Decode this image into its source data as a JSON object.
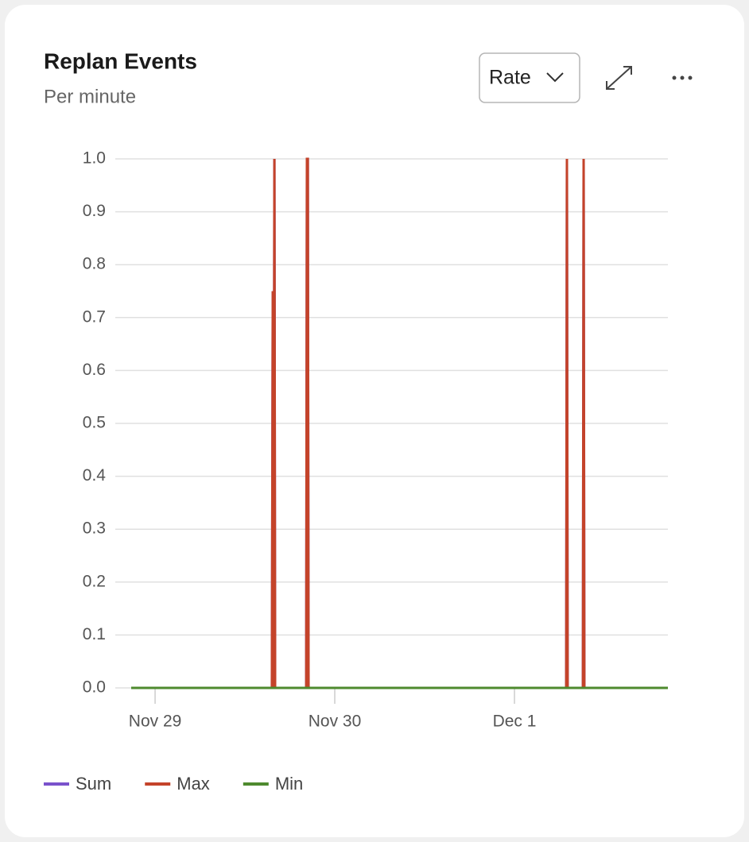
{
  "chart_data": {
    "type": "line",
    "title": "Replan Events",
    "subtitle": "Per minute",
    "x": [
      -0.133,
      0.65,
      0.655,
      0.659,
      0.664,
      0.668,
      0.841,
      0.845,
      0.85,
      0.854,
      2.288,
      2.292,
      2.296,
      2.381,
      2.385,
      2.389,
      2.854
    ],
    "series": [
      {
        "name": "Sum",
        "color": "#7a52cc",
        "values": [
          0,
          0,
          0.75,
          0,
          1,
          0,
          0,
          1,
          1,
          0,
          0,
          1,
          0,
          0,
          1,
          0,
          0
        ]
      },
      {
        "name": "Max",
        "color": "#c4432a",
        "values": [
          0,
          0,
          0.75,
          0,
          1,
          0,
          0,
          1,
          1,
          0,
          0,
          1,
          0,
          0,
          1,
          0,
          0
        ]
      },
      {
        "name": "Min",
        "color": "#4e8a2e",
        "values": [
          0,
          0,
          0,
          0,
          0,
          0,
          0,
          0,
          0,
          0,
          0,
          0,
          0,
          0,
          0,
          0,
          0
        ]
      }
    ],
    "xlim": [
      -0.133,
      2.854
    ],
    "xticks": [
      {
        "value": 0,
        "label": "Nov 29"
      },
      {
        "value": 1,
        "label": "Nov 30"
      },
      {
        "value": 2,
        "label": "Dec 1"
      }
    ],
    "ylim": [
      0,
      1
    ],
    "yticks": [
      {
        "value": 0,
        "label": "0.0"
      },
      {
        "value": 0.1,
        "label": "0.1"
      },
      {
        "value": 0.2,
        "label": "0.2"
      },
      {
        "value": 0.3,
        "label": "0.3"
      },
      {
        "value": 0.4,
        "label": "0.4"
      },
      {
        "value": 0.5,
        "label": "0.5"
      },
      {
        "value": 0.6,
        "label": "0.6"
      },
      {
        "value": 0.7,
        "label": "0.7"
      },
      {
        "value": 0.8,
        "label": "0.8"
      },
      {
        "value": 0.9,
        "label": "0.9"
      },
      {
        "value": 1,
        "label": "1.0"
      }
    ],
    "grid": true
  },
  "controls": {
    "dropdown": "Rate"
  }
}
